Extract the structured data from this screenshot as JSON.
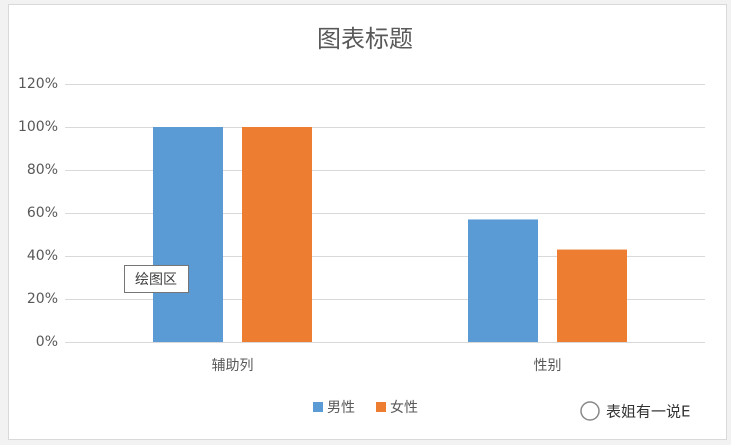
{
  "chart_data": {
    "type": "bar",
    "title": "图表标题",
    "categories": [
      "辅助列",
      "性别"
    ],
    "series": [
      {
        "name": "男性",
        "color": "#5b9bd5",
        "values": [
          100,
          57
        ]
      },
      {
        "name": "女性",
        "color": "#ed7d31",
        "values": [
          100,
          43
        ]
      }
    ],
    "ylim": [
      0,
      120
    ],
    "yticks": [
      {
        "value": 0,
        "label": "0%"
      },
      {
        "value": 20,
        "label": "20%"
      },
      {
        "value": 40,
        "label": "40%"
      },
      {
        "value": 60,
        "label": "60%"
      },
      {
        "value": 80,
        "label": "80%"
      },
      {
        "value": 100,
        "label": "100%"
      },
      {
        "value": 120,
        "label": "120%"
      }
    ],
    "grid": true,
    "legend": "bottom",
    "annotations": [
      "绘图区",
      "表姐有一说E"
    ]
  }
}
